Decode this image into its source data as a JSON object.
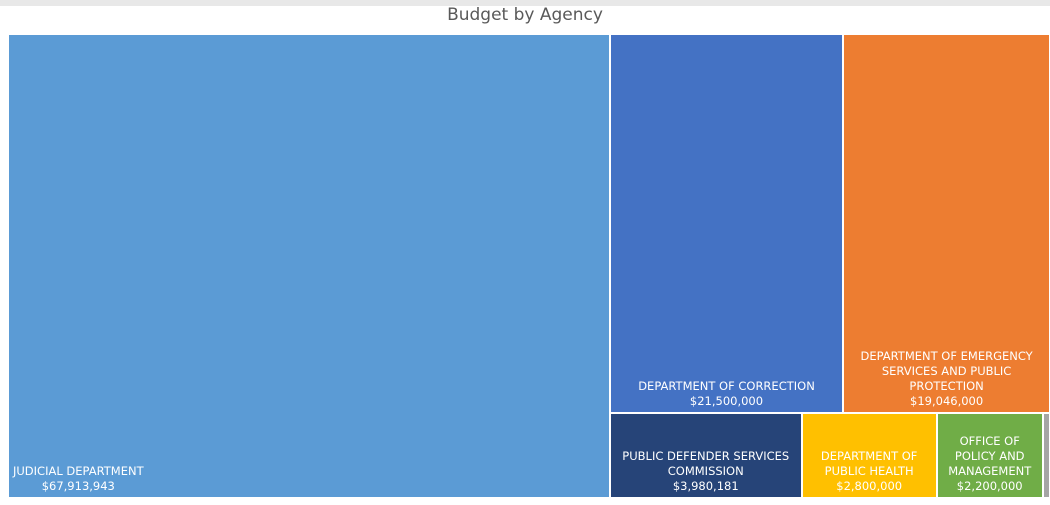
{
  "chart_data": {
    "type": "treemap",
    "title": "Budget by Agency",
    "categories": [
      "JUDICIAL DEPARTMENT",
      "DEPARTMENT OF CORRECTION",
      "DEPARTMENT OF EMERGENCY SERVICES AND PUBLIC PROTECTION",
      "PUBLIC DEFENDER SERVICES COMMISSION",
      "DEPARTMENT OF PUBLIC HEALTH",
      "OFFICE OF POLICY AND MANAGEMENT",
      null
    ],
    "values": [
      67913943,
      21500000,
      19046000,
      3980181,
      2800000,
      2200000,
      150000
    ],
    "value_labels": [
      "$67,913,943",
      "$21,500,000",
      "$19,046,000",
      "$3,980,181",
      "$2,800,000",
      "$2,200,000",
      null
    ],
    "colors": [
      "#5b9bd5",
      "#4472c4",
      "#ed7d31",
      "#264478",
      "#ffc000",
      "#70ad47",
      "#a5a5a5"
    ]
  }
}
